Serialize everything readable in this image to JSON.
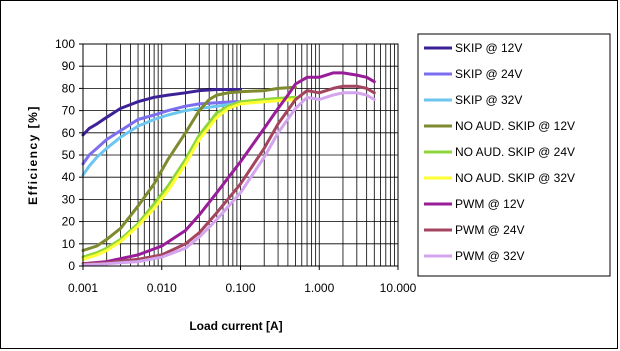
{
  "chart_data": {
    "type": "line",
    "xscale": "log",
    "xlabel": "Load current [A]",
    "ylabel": "Efficiency [%]",
    "xlim": [
      0.001,
      10
    ],
    "ylim": [
      0,
      100
    ],
    "x_tick_labels": [
      "0.001",
      "0.010",
      "0.100",
      "1.000",
      "10.000"
    ],
    "y_tick_labels": [
      "0",
      "10",
      "20",
      "30",
      "40",
      "50",
      "60",
      "70",
      "80",
      "90",
      "100"
    ],
    "grid": true,
    "legend_position": "right",
    "series": [
      {
        "name": "SKIP @ 12V",
        "color": "#3d2297",
        "points": [
          [
            0.001,
            59
          ],
          [
            0.0012,
            62
          ],
          [
            0.0015,
            64
          ],
          [
            0.002,
            67
          ],
          [
            0.003,
            71
          ],
          [
            0.005,
            74
          ],
          [
            0.008,
            76
          ],
          [
            0.012,
            77
          ],
          [
            0.02,
            78
          ],
          [
            0.03,
            79
          ],
          [
            0.05,
            79.5
          ],
          [
            0.08,
            79.5
          ],
          [
            0.1,
            79.5
          ]
        ]
      },
      {
        "name": "SKIP @ 24V",
        "color": "#7b6ff0",
        "points": [
          [
            0.001,
            46
          ],
          [
            0.0012,
            50
          ],
          [
            0.0015,
            53
          ],
          [
            0.002,
            57
          ],
          [
            0.003,
            61
          ],
          [
            0.005,
            66
          ],
          [
            0.008,
            68
          ],
          [
            0.012,
            70
          ],
          [
            0.02,
            72
          ],
          [
            0.03,
            73
          ],
          [
            0.05,
            73.5
          ],
          [
            0.08,
            74
          ],
          [
            0.1,
            74
          ]
        ]
      },
      {
        "name": "SKIP @ 32V",
        "color": "#6cc6f0",
        "points": [
          [
            0.001,
            41
          ],
          [
            0.0012,
            45
          ],
          [
            0.0015,
            49
          ],
          [
            0.002,
            53
          ],
          [
            0.003,
            58
          ],
          [
            0.005,
            63
          ],
          [
            0.008,
            66
          ],
          [
            0.012,
            68
          ],
          [
            0.02,
            70
          ],
          [
            0.03,
            71
          ],
          [
            0.05,
            72
          ],
          [
            0.08,
            73
          ],
          [
            0.1,
            73
          ]
        ]
      },
      {
        "name": "NO AUD. SKIP @ 12V",
        "color": "#7f8a2e",
        "points": [
          [
            0.001,
            7
          ],
          [
            0.0015,
            9
          ],
          [
            0.002,
            12
          ],
          [
            0.003,
            17
          ],
          [
            0.005,
            27
          ],
          [
            0.008,
            37
          ],
          [
            0.012,
            48
          ],
          [
            0.02,
            60
          ],
          [
            0.03,
            70
          ],
          [
            0.04,
            75
          ],
          [
            0.05,
            77
          ],
          [
            0.07,
            78
          ],
          [
            0.1,
            78.5
          ],
          [
            0.2,
            79
          ],
          [
            0.3,
            80
          ],
          [
            0.5,
            80.5
          ]
        ]
      },
      {
        "name": "NO AUD. SKIP @ 24V",
        "color": "#8fd63a",
        "points": [
          [
            0.001,
            4
          ],
          [
            0.0015,
            6
          ],
          [
            0.002,
            8
          ],
          [
            0.003,
            12
          ],
          [
            0.005,
            19
          ],
          [
            0.008,
            28
          ],
          [
            0.012,
            36
          ],
          [
            0.02,
            48
          ],
          [
            0.03,
            59
          ],
          [
            0.05,
            69
          ],
          [
            0.07,
            72
          ],
          [
            0.1,
            74
          ],
          [
            0.2,
            75
          ],
          [
            0.3,
            75.5
          ],
          [
            0.5,
            76
          ]
        ]
      },
      {
        "name": "NO AUD. SKIP @ 32V",
        "color": "#ffff33",
        "points": [
          [
            0.001,
            3
          ],
          [
            0.0015,
            5
          ],
          [
            0.002,
            7
          ],
          [
            0.003,
            11
          ],
          [
            0.005,
            18
          ],
          [
            0.008,
            26
          ],
          [
            0.012,
            34
          ],
          [
            0.02,
            46
          ],
          [
            0.03,
            57
          ],
          [
            0.05,
            67
          ],
          [
            0.07,
            71
          ],
          [
            0.1,
            73
          ],
          [
            0.2,
            74
          ],
          [
            0.3,
            74.5
          ],
          [
            0.5,
            75
          ]
        ]
      },
      {
        "name": "PWM @ 12V",
        "color": "#991c99",
        "points": [
          [
            0.001,
            1
          ],
          [
            0.002,
            2
          ],
          [
            0.005,
            5
          ],
          [
            0.01,
            9
          ],
          [
            0.02,
            16
          ],
          [
            0.03,
            23
          ],
          [
            0.05,
            33
          ],
          [
            0.1,
            47
          ],
          [
            0.2,
            62
          ],
          [
            0.3,
            71
          ],
          [
            0.4,
            77
          ],
          [
            0.5,
            82
          ],
          [
            0.7,
            85
          ],
          [
            1,
            85
          ],
          [
            1.5,
            87
          ],
          [
            2,
            87
          ],
          [
            3,
            86
          ],
          [
            4,
            85
          ],
          [
            5,
            83
          ]
        ]
      },
      {
        "name": "PWM @ 24V",
        "color": "#a44560",
        "points": [
          [
            0.001,
            1
          ],
          [
            0.002,
            1.5
          ],
          [
            0.005,
            3
          ],
          [
            0.01,
            5
          ],
          [
            0.02,
            10
          ],
          [
            0.03,
            15
          ],
          [
            0.05,
            24
          ],
          [
            0.1,
            37
          ],
          [
            0.2,
            53
          ],
          [
            0.3,
            64
          ],
          [
            0.5,
            75
          ],
          [
            0.7,
            79
          ],
          [
            1,
            78
          ],
          [
            1.5,
            80
          ],
          [
            2,
            81
          ],
          [
            3,
            81
          ],
          [
            4,
            80
          ],
          [
            5,
            78
          ]
        ]
      },
      {
        "name": "PWM @ 32V",
        "color": "#d4a4ee",
        "points": [
          [
            0.001,
            0.5
          ],
          [
            0.002,
            1
          ],
          [
            0.005,
            2
          ],
          [
            0.01,
            4
          ],
          [
            0.02,
            8
          ],
          [
            0.03,
            13
          ],
          [
            0.05,
            21
          ],
          [
            0.1,
            33
          ],
          [
            0.2,
            49
          ],
          [
            0.3,
            60
          ],
          [
            0.5,
            71
          ],
          [
            0.7,
            76
          ],
          [
            1,
            75
          ],
          [
            1.5,
            77
          ],
          [
            2,
            78
          ],
          [
            3,
            78
          ],
          [
            4,
            77
          ],
          [
            5,
            75
          ]
        ]
      }
    ]
  }
}
